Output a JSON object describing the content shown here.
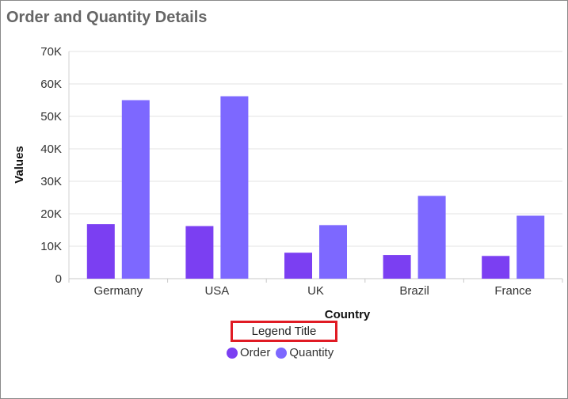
{
  "title": "Order and Quantity Details",
  "colors": {
    "order": "#7b3ff2",
    "quantity": "#7d68ff"
  },
  "chart_data": {
    "type": "bar",
    "categories": [
      "Germany",
      "USA",
      "UK",
      "Brazil",
      "France"
    ],
    "series": [
      {
        "name": "Order",
        "values": [
          16800,
          16200,
          8000,
          7300,
          7000
        ]
      },
      {
        "name": "Quantity",
        "values": [
          55000,
          56200,
          16500,
          25500,
          19400
        ]
      }
    ],
    "xlabel": "Country",
    "ylabel": "Values",
    "ylim": [
      0,
      70000
    ],
    "yticks": [
      "0",
      "10K",
      "20K",
      "30K",
      "40K",
      "50K",
      "60K",
      "70K"
    ],
    "grid": true,
    "legend_title": "Legend Title",
    "legend_position": "bottom"
  }
}
